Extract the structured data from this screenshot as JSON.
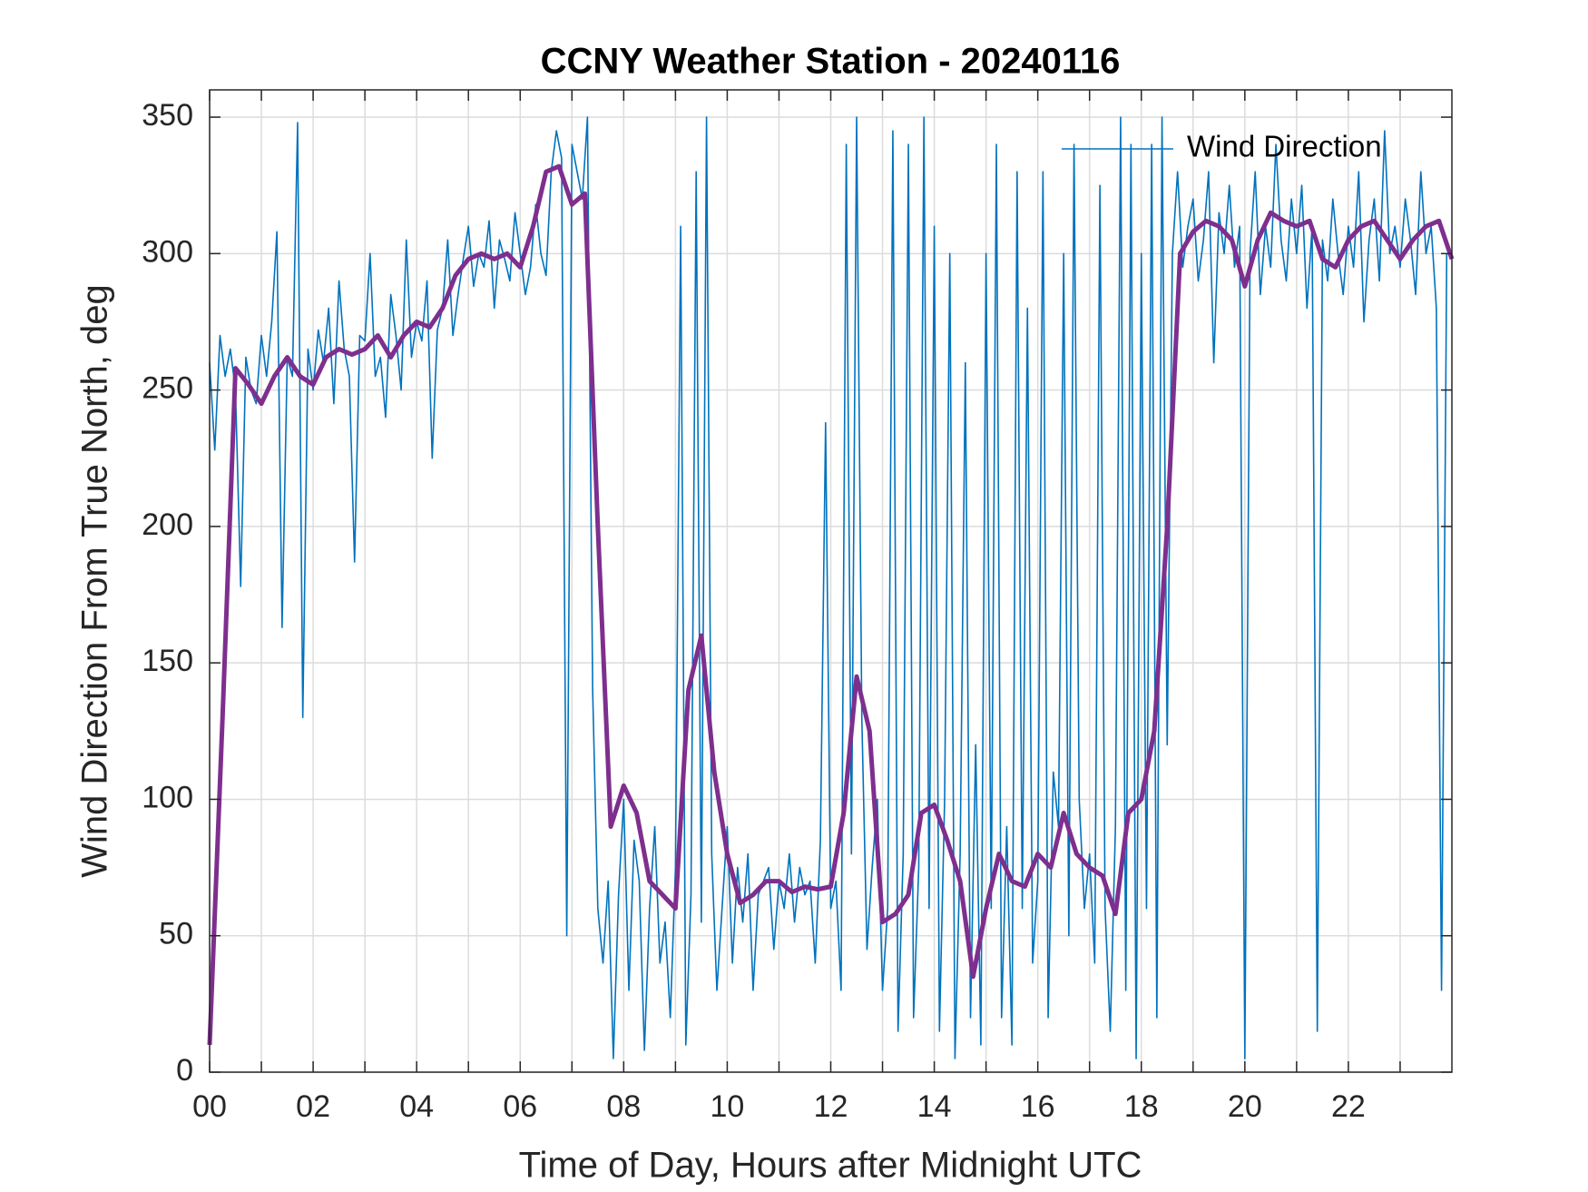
{
  "chart_data": {
    "type": "line",
    "title": "CCNY Weather Station - 20240116",
    "xlabel": "Time of Day, Hours after Midnight UTC",
    "ylabel": "Wind Direction From True North, deg",
    "xlim": [
      0,
      24
    ],
    "ylim": [
      0,
      360
    ],
    "xticks": [
      {
        "value": 0,
        "label": "00"
      },
      {
        "value": 2,
        "label": "02"
      },
      {
        "value": 4,
        "label": "04"
      },
      {
        "value": 6,
        "label": "06"
      },
      {
        "value": 8,
        "label": "08"
      },
      {
        "value": 10,
        "label": "10"
      },
      {
        "value": 12,
        "label": "12"
      },
      {
        "value": 14,
        "label": "14"
      },
      {
        "value": 16,
        "label": "16"
      },
      {
        "value": 18,
        "label": "18"
      },
      {
        "value": 20,
        "label": "20"
      },
      {
        "value": 22,
        "label": "22"
      }
    ],
    "xminorticks": [
      1,
      3,
      5,
      7,
      9,
      11,
      13,
      15,
      17,
      19,
      21,
      23
    ],
    "yticks": [
      0,
      50,
      100,
      150,
      200,
      250,
      300,
      350
    ],
    "grid": true,
    "legend": "top-right",
    "series": [
      {
        "name": "Wind Direction",
        "color": "#0072bd",
        "x": [
          0,
          0.1,
          0.2,
          0.3,
          0.4,
          0.5,
          0.6,
          0.7,
          0.8,
          0.9,
          1,
          1.1,
          1.2,
          1.3,
          1.4,
          1.5,
          1.6,
          1.7,
          1.8,
          1.9,
          2,
          2.1,
          2.2,
          2.3,
          2.4,
          2.5,
          2.6,
          2.7,
          2.8,
          2.9,
          3,
          3.1,
          3.2,
          3.3,
          3.4,
          3.5,
          3.6,
          3.7,
          3.8,
          3.9,
          4,
          4.1,
          4.2,
          4.3,
          4.4,
          4.5,
          4.6,
          4.7,
          4.8,
          4.9,
          5,
          5.1,
          5.2,
          5.3,
          5.4,
          5.5,
          5.6,
          5.7,
          5.8,
          5.9,
          6,
          6.1,
          6.2,
          6.3,
          6.4,
          6.5,
          6.6,
          6.7,
          6.8,
          6.9,
          7,
          7.1,
          7.2,
          7.3,
          7.4,
          7.5,
          7.6,
          7.7,
          7.8,
          7.9,
          8,
          8.1,
          8.2,
          8.3,
          8.4,
          8.5,
          8.6,
          8.7,
          8.8,
          8.9,
          9,
          9.1,
          9.2,
          9.3,
          9.4,
          9.5,
          9.6,
          9.7,
          9.8,
          9.9,
          10,
          10.1,
          10.2,
          10.3,
          10.4,
          10.5,
          10.6,
          10.7,
          10.8,
          10.9,
          11,
          11.1,
          11.2,
          11.3,
          11.4,
          11.5,
          11.6,
          11.7,
          11.8,
          11.9,
          12,
          12.1,
          12.2,
          12.3,
          12.4,
          12.5,
          12.6,
          12.7,
          12.8,
          12.9,
          13,
          13.1,
          13.2,
          13.3,
          13.4,
          13.5,
          13.6,
          13.7,
          13.8,
          13.9,
          14,
          14.1,
          14.2,
          14.3,
          14.4,
          14.5,
          14.6,
          14.7,
          14.8,
          14.9,
          15,
          15.1,
          15.2,
          15.3,
          15.4,
          15.5,
          15.6,
          15.7,
          15.8,
          15.9,
          16,
          16.1,
          16.2,
          16.3,
          16.4,
          16.5,
          16.6,
          16.7,
          16.8,
          16.9,
          17,
          17.1,
          17.2,
          17.3,
          17.4,
          17.5,
          17.6,
          17.7,
          17.8,
          17.9,
          18,
          18.1,
          18.2,
          18.3,
          18.4,
          18.5,
          18.6,
          18.7,
          18.8,
          18.9,
          19,
          19.1,
          19.2,
          19.3,
          19.4,
          19.5,
          19.6,
          19.7,
          19.8,
          19.9,
          20,
          20.1,
          20.2,
          20.3,
          20.4,
          20.5,
          20.6,
          20.7,
          20.8,
          20.9,
          21,
          21.1,
          21.2,
          21.3,
          21.4,
          21.5,
          21.6,
          21.7,
          21.8,
          21.9,
          22,
          22.1,
          22.2,
          22.3,
          22.4,
          22.5,
          22.6,
          22.7,
          22.8,
          22.9,
          23,
          23.1,
          23.2,
          23.3,
          23.4,
          23.5,
          23.6,
          23.7,
          23.8,
          23.9
        ],
        "values": [
          260,
          228,
          270,
          255,
          265,
          250,
          178,
          262,
          250,
          245,
          270,
          255,
          275,
          308,
          163,
          262,
          255,
          348,
          130,
          265,
          250,
          272,
          260,
          280,
          245,
          290,
          265,
          255,
          187,
          270,
          268,
          300,
          255,
          262,
          240,
          285,
          270,
          250,
          305,
          262,
          275,
          268,
          290,
          225,
          272,
          280,
          305,
          270,
          285,
          298,
          310,
          288,
          300,
          295,
          312,
          280,
          305,
          298,
          290,
          315,
          300,
          285,
          295,
          318,
          300,
          292,
          330,
          345,
          335,
          50,
          340,
          330,
          320,
          350,
          140,
          60,
          40,
          70,
          5,
          65,
          100,
          30,
          85,
          70,
          8,
          60,
          90,
          40,
          55,
          20,
          75,
          310,
          10,
          65,
          330,
          55,
          350,
          80,
          30,
          60,
          90,
          40,
          75,
          55,
          80,
          30,
          65,
          70,
          75,
          45,
          70,
          60,
          80,
          55,
          75,
          65,
          70,
          40,
          85,
          238,
          60,
          70,
          30,
          340,
          80,
          350,
          130,
          45,
          75,
          100,
          30,
          60,
          345,
          15,
          80,
          340,
          20,
          75,
          350,
          60,
          310,
          15,
          100,
          300,
          5,
          80,
          260,
          20,
          120,
          10,
          300,
          60,
          340,
          20,
          90,
          10,
          330,
          60,
          280,
          40,
          70,
          330,
          20,
          110,
          90,
          300,
          50,
          340,
          100,
          60,
          80,
          40,
          325,
          60,
          15,
          90,
          350,
          30,
          340,
          5,
          300,
          60,
          340,
          20,
          350,
          120,
          300,
          330,
          295,
          310,
          320,
          290,
          305,
          330,
          260,
          315,
          300,
          325,
          295,
          310,
          5,
          300,
          330,
          285,
          310,
          295,
          340,
          305,
          290,
          320,
          300,
          325,
          280,
          310,
          15,
          305,
          290,
          320,
          300,
          285,
          310,
          295,
          330,
          275,
          305,
          320,
          290,
          345,
          300,
          310,
          295,
          320,
          305,
          285,
          330,
          300,
          310,
          280,
          30,
          300
        ]
      },
      {
        "color": "#7e2f8e",
        "x": [
          0,
          0.25,
          0.5,
          0.75,
          1,
          1.25,
          1.5,
          1.75,
          2,
          2.25,
          2.5,
          2.75,
          3,
          3.25,
          3.5,
          3.75,
          4,
          4.25,
          4.5,
          4.75,
          5,
          5.25,
          5.5,
          5.75,
          6,
          6.25,
          6.5,
          6.75,
          7,
          7.25,
          7.5,
          7.75,
          8,
          8.25,
          8.5,
          8.75,
          9,
          9.25,
          9.5,
          9.75,
          10,
          10.25,
          10.5,
          10.75,
          11,
          11.25,
          11.5,
          11.75,
          12,
          12.25,
          12.5,
          12.75,
          13,
          13.25,
          13.5,
          13.75,
          14,
          14.25,
          14.5,
          14.75,
          15,
          15.25,
          15.5,
          15.75,
          16,
          16.25,
          16.5,
          16.75,
          17,
          17.25,
          17.5,
          17.75,
          18,
          18.25,
          18.5,
          18.75,
          19,
          19.25,
          19.5,
          19.75,
          20,
          20.25,
          20.5,
          20.75,
          21,
          21.25,
          21.5,
          21.75,
          22,
          22.25,
          22.5,
          22.75,
          23,
          23.25,
          23.5,
          23.75,
          24
        ],
        "values": [
          10,
          130,
          258,
          252,
          245,
          255,
          262,
          255,
          252,
          262,
          265,
          263,
          265,
          270,
          262,
          270,
          275,
          273,
          280,
          292,
          298,
          300,
          298,
          300,
          295,
          310,
          330,
          332,
          318,
          322,
          200,
          90,
          105,
          95,
          70,
          65,
          60,
          140,
          160,
          110,
          80,
          62,
          65,
          70,
          70,
          66,
          68,
          67,
          68,
          95,
          145,
          125,
          55,
          58,
          65,
          95,
          98,
          85,
          70,
          35,
          60,
          80,
          70,
          68,
          80,
          75,
          95,
          80,
          75,
          72,
          58,
          95,
          100,
          125,
          200,
          300,
          308,
          312,
          310,
          305,
          288,
          305,
          315,
          312,
          310,
          312,
          298,
          295,
          305,
          310,
          312,
          305,
          298,
          305,
          310,
          312,
          298
        ]
      }
    ]
  }
}
